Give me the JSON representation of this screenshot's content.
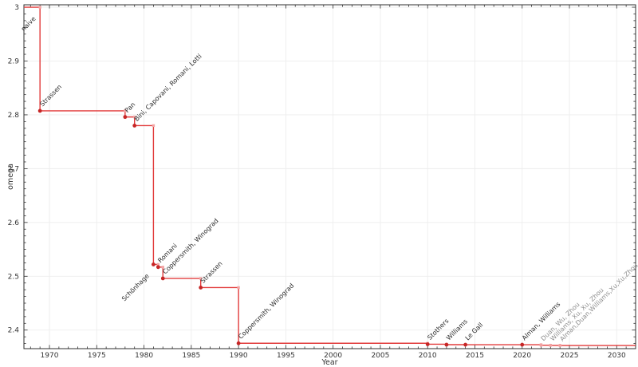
{
  "chart_data": {
    "type": "line",
    "subtype": "step-post",
    "title": "",
    "xlabel": "Year",
    "ylabel": "omega",
    "xlim": [
      1967.3,
      2032.0
    ],
    "ylim": [
      2.3655,
      3.0045
    ],
    "x_ticks": [
      1970,
      1975,
      1980,
      1985,
      1990,
      1995,
      2000,
      2005,
      2010,
      2015,
      2020,
      2025,
      2030
    ],
    "x_tick_labels": [
      "1970",
      "1975",
      "1980",
      "1985",
      "1990",
      "1995",
      "2000",
      "2005",
      "2010",
      "2015",
      "2020",
      "2025",
      "2030"
    ],
    "x_minor_step": 1,
    "y_ticks": [
      2.4,
      2.5,
      2.6,
      2.7,
      2.8,
      2.9,
      3.0
    ],
    "y_tick_labels": [
      "2.4",
      "2.5",
      "2.6",
      "2.7",
      "2.8",
      "2.9",
      "3"
    ],
    "y_minor_step": 0.0125,
    "grid": true,
    "legend": "none",
    "colors": {
      "line": "#e23b3b",
      "marker": "#c62626",
      "corner_marker": "#f2a6a6",
      "faded_marker": "#f2a0a0",
      "label": "#2a2a2a",
      "faded_label": "#8f8f8f",
      "grid": "#ededed",
      "frame": "#2f2f2f",
      "tick_label": "#333333"
    },
    "points": [
      {
        "year": 1969,
        "omega": 3.0,
        "label": "naive",
        "marker": "none",
        "label_side": "below"
      },
      {
        "year": 1969,
        "omega": 2.8074,
        "label": "Strassen",
        "marker": "dark",
        "label_side": "above"
      },
      {
        "year": 1978,
        "omega": 2.796,
        "label": "Pan",
        "marker": "dark",
        "label_side": "above"
      },
      {
        "year": 1979,
        "omega": 2.78,
        "label": "Bini, Capovani, Romani, Lotti",
        "marker": "dark",
        "label_side": "above"
      },
      {
        "year": 1981,
        "omega": 2.522,
        "label": "Schönhage",
        "marker": "dark",
        "label_side": "below"
      },
      {
        "year": 1981.5,
        "omega": 2.517,
        "label": "Romani",
        "marker": "dark",
        "label_side": "above"
      },
      {
        "year": 1982,
        "omega": 2.496,
        "label": "Coppersmith, Winograd",
        "marker": "dark",
        "label_side": "above"
      },
      {
        "year": 1986,
        "omega": 2.479,
        "label": "Strassen",
        "marker": "dark",
        "label_side": "above"
      },
      {
        "year": 1990,
        "omega": 2.3755,
        "label": "Coppersmith, Winograd",
        "marker": "dark",
        "label_side": "above"
      },
      {
        "year": 2010,
        "omega": 2.3737,
        "label": "Stothers",
        "marker": "dark",
        "label_side": "above"
      },
      {
        "year": 2012,
        "omega": 2.3729,
        "label": "Williams",
        "marker": "dark",
        "label_side": "above"
      },
      {
        "year": 2014,
        "omega": 2.3728639,
        "label": "Le Gall",
        "marker": "dark",
        "label_side": "above"
      },
      {
        "year": 2020,
        "omega": 2.3728596,
        "label": "Alman, Williams",
        "marker": "dark",
        "label_side": "above"
      },
      {
        "year": 2022,
        "omega": 2.371866,
        "label": "Duan, Wu, Zhou",
        "marker": "faded",
        "label_side": "above"
      },
      {
        "year": 2023,
        "omega": 2.371552,
        "label": "Williams, Xu, Xu, Zhou",
        "marker": "faded",
        "label_side": "above"
      },
      {
        "year": 2024,
        "omega": 2.371339,
        "label": "Alman,Duan,Williams,Xu,Xu,Zhou",
        "marker": "faded",
        "label_side": "above"
      }
    ]
  }
}
